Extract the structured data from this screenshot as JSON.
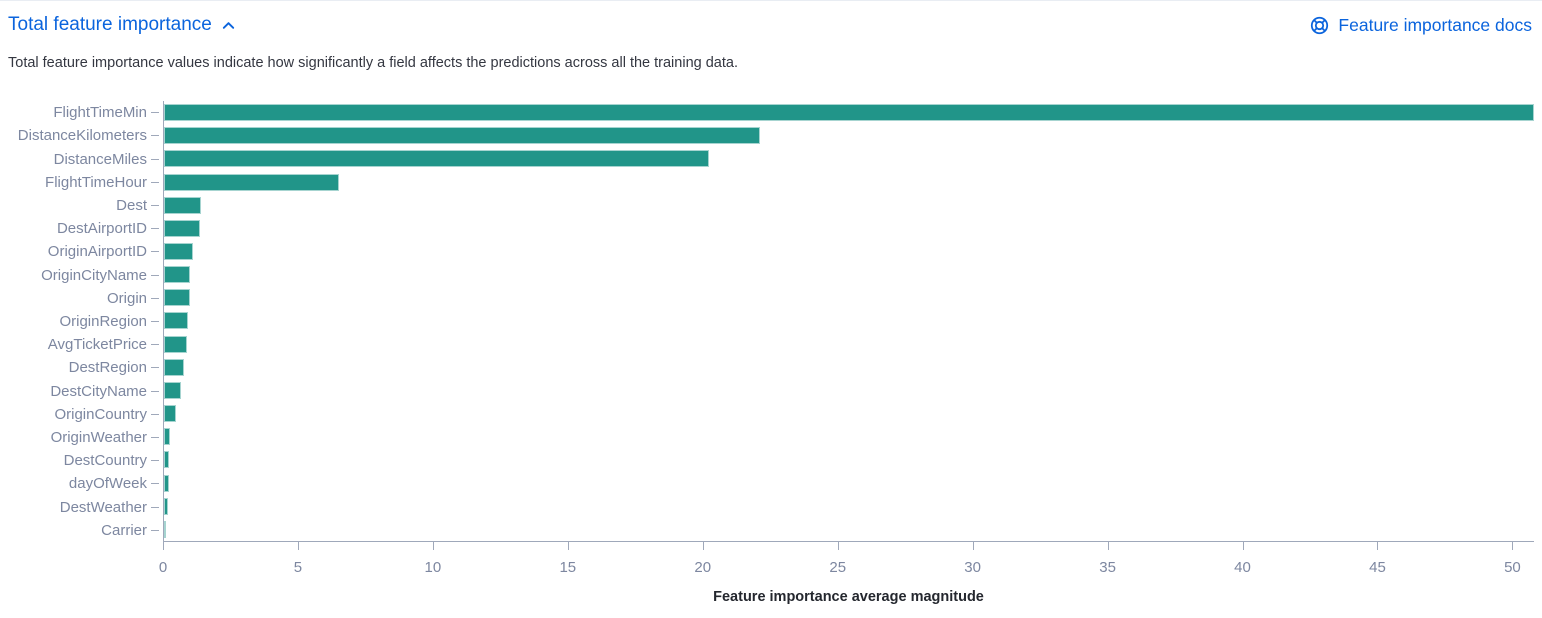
{
  "panel": {
    "title": "Total feature importance",
    "description": "Total feature importance values indicate how significantly a field affects the predictions across all the training data.",
    "docs_link_label": "Feature importance docs"
  },
  "colors": {
    "link_blue": "#0b64dd",
    "bar_teal": "#219589",
    "axis_label_gray": "#7d87a0",
    "axis_line_gray": "#9fa8ba",
    "body_text": "#343741"
  },
  "icons": {
    "collapse": "chevron-up-icon",
    "docs": "lifebuoy-help-icon"
  },
  "chart_data": {
    "type": "bar",
    "orientation": "horizontal",
    "title": "",
    "xlabel": "Feature importance average magnitude",
    "ylabel": "",
    "xlim": [
      0,
      50.8
    ],
    "x_ticks": [
      0,
      5,
      10,
      15,
      20,
      25,
      30,
      35,
      40,
      45,
      50
    ],
    "grid": false,
    "legend": false,
    "categories": [
      "FlightTimeMin",
      "DistanceKilometers",
      "DistanceMiles",
      "FlightTimeHour",
      "Dest",
      "DestAirportID",
      "OriginAirportID",
      "OriginCityName",
      "Origin",
      "OriginRegion",
      "AvgTicketPrice",
      "DestRegion",
      "DestCityName",
      "OriginCountry",
      "OriginWeather",
      "DestCountry",
      "dayOfWeek",
      "DestWeather",
      "Carrier"
    ],
    "values": [
      50.8,
      22.1,
      20.2,
      6.5,
      1.37,
      1.33,
      1.07,
      0.98,
      0.96,
      0.89,
      0.85,
      0.74,
      0.63,
      0.43,
      0.21,
      0.2,
      0.19,
      0.15,
      0.04
    ]
  }
}
